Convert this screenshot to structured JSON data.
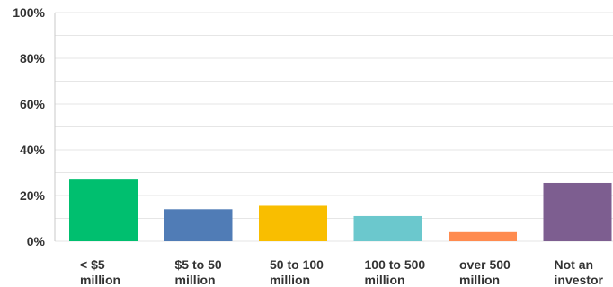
{
  "chart_data": {
    "type": "bar",
    "categories": [
      [
        "< $5",
        "million"
      ],
      [
        "$5 to 50",
        "million"
      ],
      [
        "50 to 100",
        "million"
      ],
      [
        "100 to 500",
        "million"
      ],
      [
        "over 500",
        "million"
      ],
      [
        "Not an",
        "investor"
      ]
    ],
    "values": [
      27,
      14,
      15.5,
      11,
      4,
      25.5
    ],
    "colors": [
      "#00bf6f",
      "#507cb6",
      "#f9be00",
      "#6bc8cd",
      "#ff8b4f",
      "#7d5e90"
    ],
    "yticks": [
      "0%",
      "20%",
      "40%",
      "60%",
      "80%",
      "100%"
    ],
    "ylim": [
      0,
      100
    ],
    "grid": true,
    "title": "",
    "xlabel": "",
    "ylabel": ""
  }
}
